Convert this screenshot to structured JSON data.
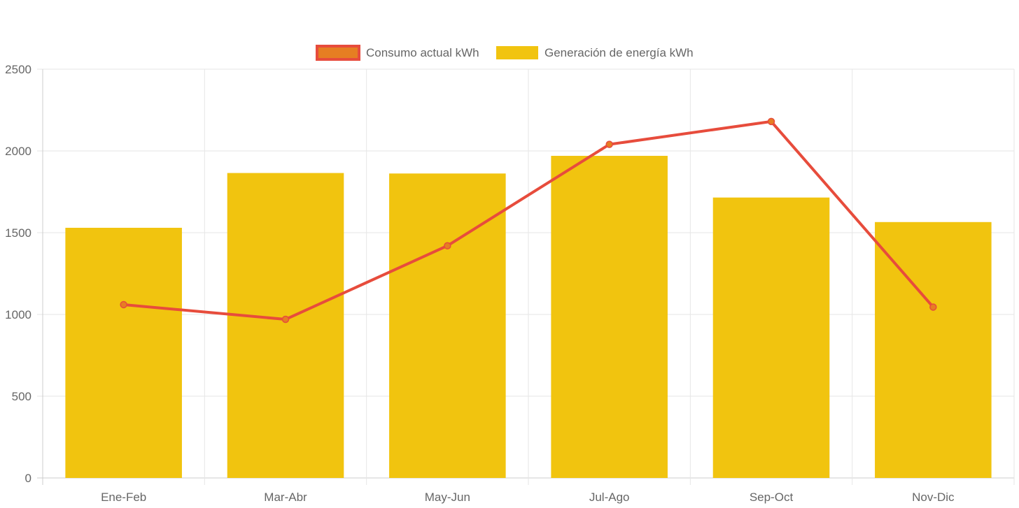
{
  "chart_data": {
    "type": "bar",
    "categories": [
      "Ene-Feb",
      "Mar-Abr",
      "May-Jun",
      "Jul-Ago",
      "Sep-Oct",
      "Nov-Dic"
    ],
    "series": [
      {
        "name": "Consumo actual kWh",
        "type": "line",
        "values": [
          1060,
          970,
          1420,
          2040,
          2180,
          1045
        ],
        "color": "#e74c3c",
        "point_color": "#e67e22"
      },
      {
        "name": "Generación de energía kWh",
        "type": "bar",
        "values": [
          1530,
          1865,
          1862,
          1970,
          1715,
          1565
        ],
        "color": "#f1c40f"
      }
    ],
    "yticks": [
      "0",
      "500",
      "1000",
      "1500",
      "2000",
      "2500"
    ],
    "ylim": [
      0,
      2500
    ],
    "grid": true,
    "legend_position": "top-center",
    "title": "",
    "xlabel": "",
    "ylabel": ""
  }
}
